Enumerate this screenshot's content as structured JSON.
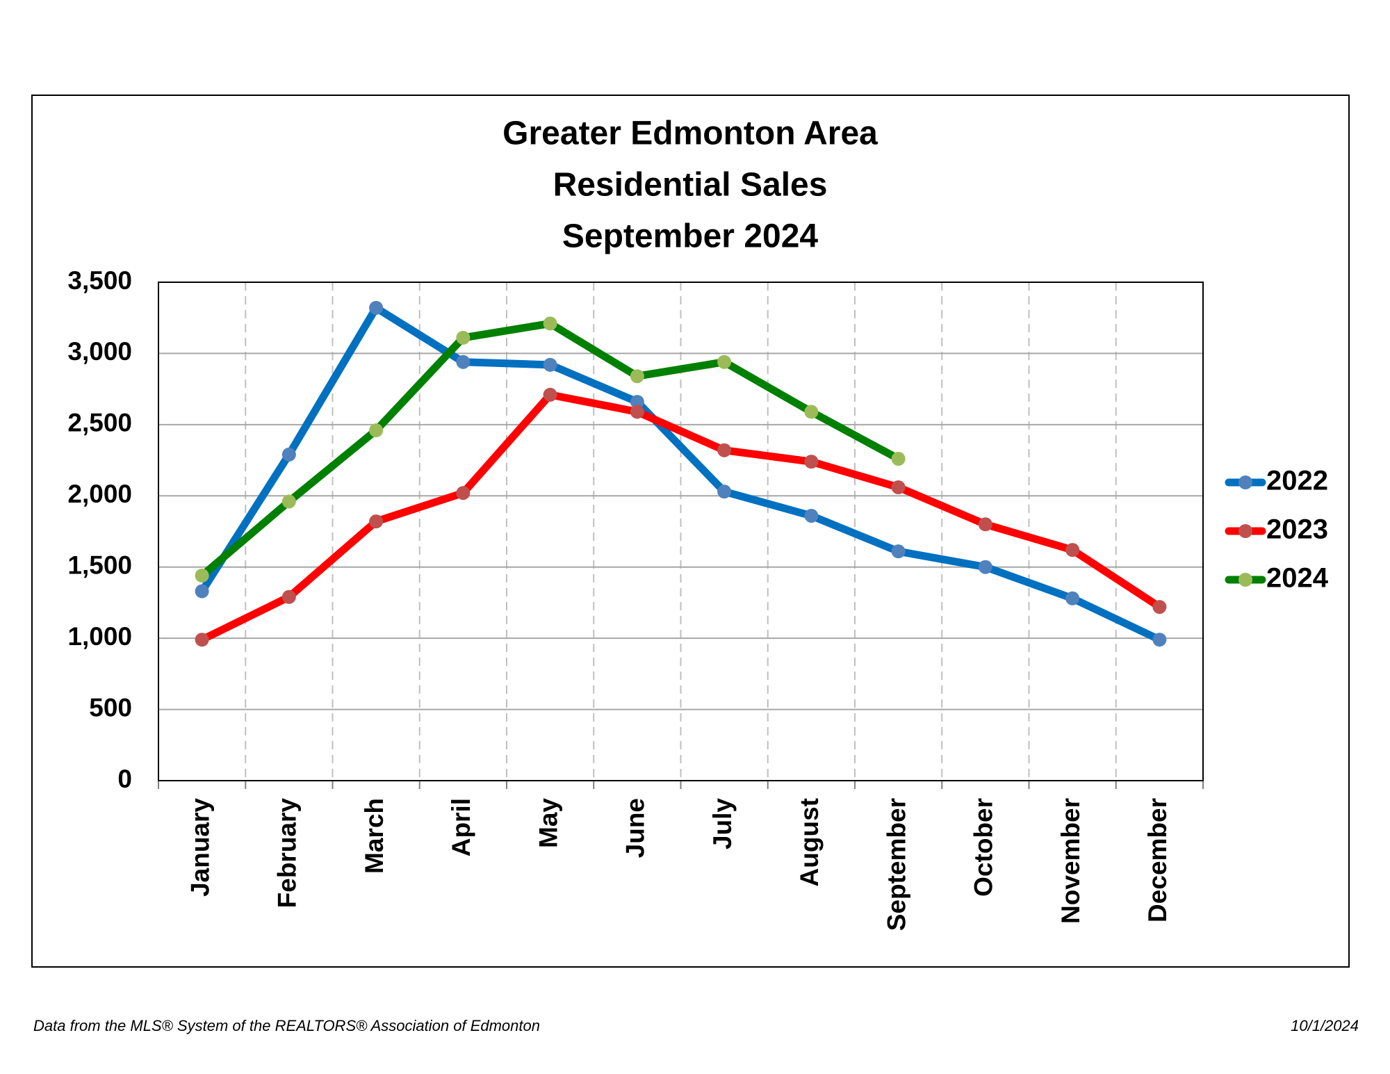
{
  "chart_data": {
    "type": "line",
    "title": [
      "Greater Edmonton Area",
      "Residential Sales",
      "September 2024"
    ],
    "categories": [
      "January",
      "February",
      "March",
      "April",
      "May",
      "June",
      "July",
      "August",
      "September",
      "October",
      "November",
      "December"
    ],
    "series": [
      {
        "name": "2022",
        "color": "#0070c0",
        "marker_color": "#4f81bd",
        "values": [
          1330,
          2290,
          3320,
          2940,
          2920,
          2660,
          2030,
          1860,
          1610,
          1500,
          1280,
          990
        ]
      },
      {
        "name": "2023",
        "color": "#ff0000",
        "marker_color": "#c0504d",
        "values": [
          990,
          1290,
          1820,
          2020,
          2710,
          2590,
          2320,
          2240,
          2060,
          1800,
          1620,
          1220
        ]
      },
      {
        "name": "2024",
        "color": "#008000",
        "marker_color": "#9bbb59",
        "values": [
          1440,
          1960,
          2460,
          3110,
          3210,
          2840,
          2940,
          2590,
          2260,
          null,
          null,
          null
        ]
      }
    ],
    "ylim": [
      0,
      3500
    ],
    "yticks": [
      0,
      500,
      {
        "value": 1000,
        "label": "1,000"
      },
      {
        "value": 1500,
        "label": "1,500"
      },
      {
        "value": 2000,
        "label": "2,000"
      },
      {
        "value": 2500,
        "label": "2,500"
      },
      {
        "value": 3000,
        "label": "3,000"
      },
      {
        "value": 3500,
        "label": "3,500"
      }
    ],
    "grid": true,
    "legend": "right",
    "source": "Data from the MLS® System of the REALTORS® Association of Edmonton",
    "date": "10/1/2024"
  }
}
